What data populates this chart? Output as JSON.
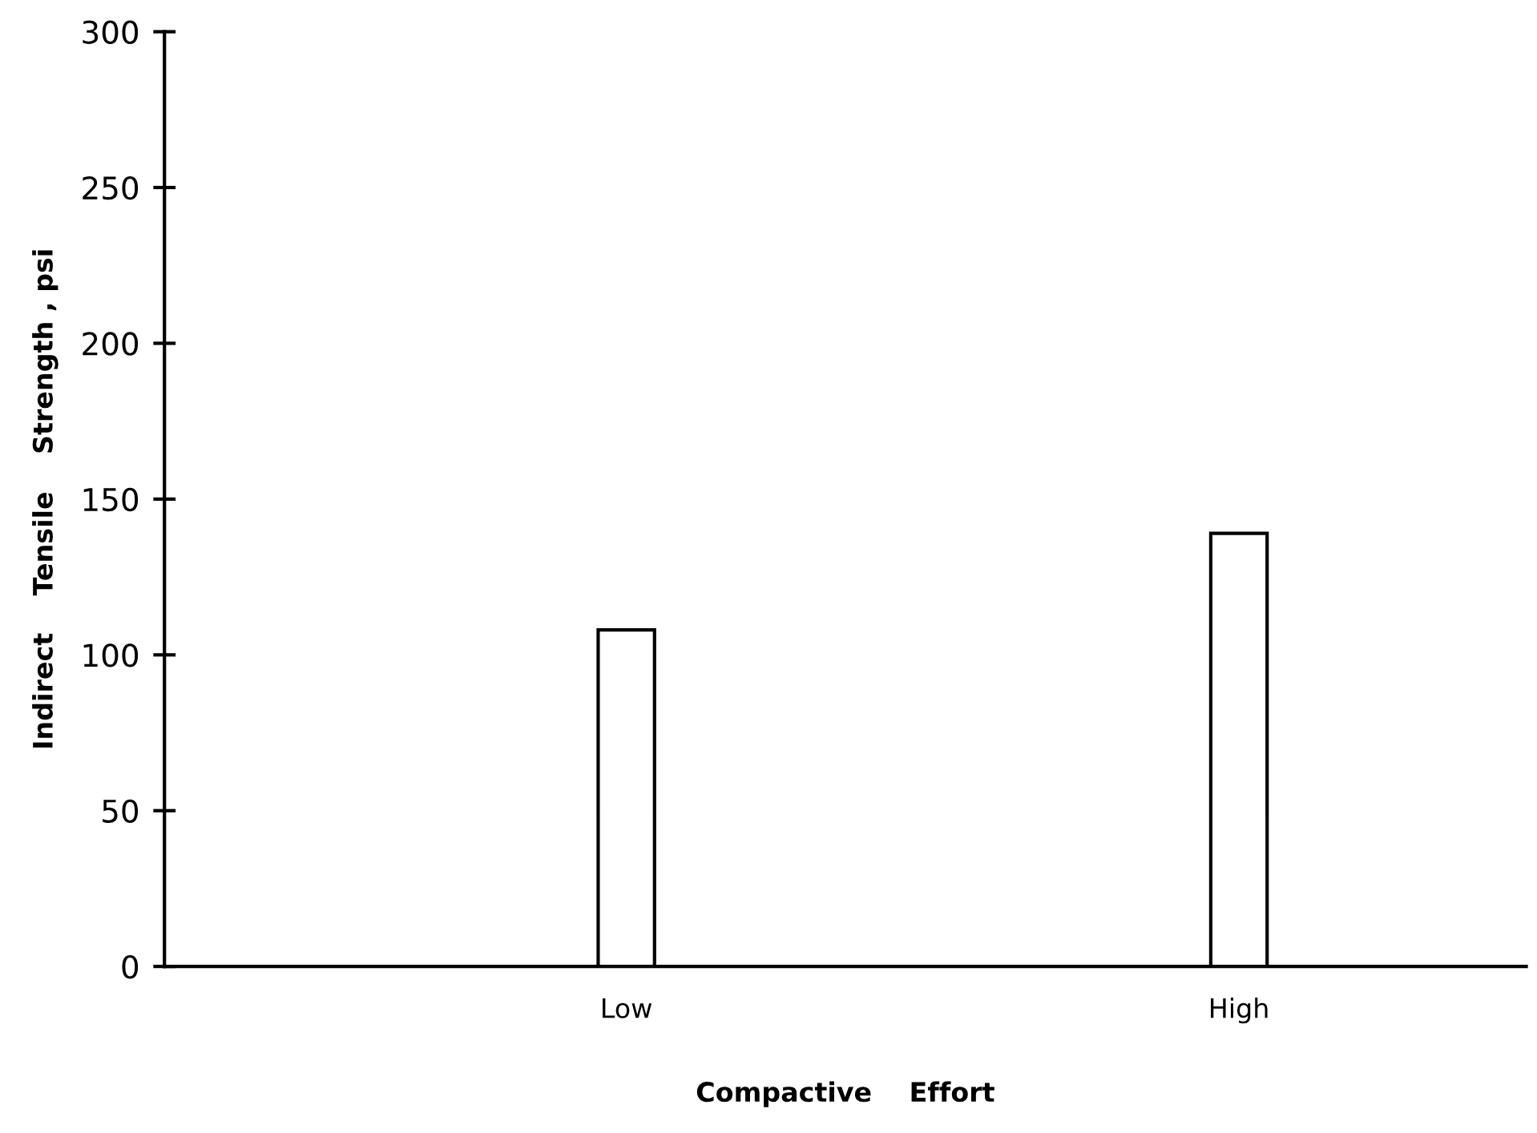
{
  "chart_data": {
    "type": "bar",
    "xlabel": "Compactive    Effort",
    "ylabel": "Indirect    Tensile    Strength , psi",
    "categories": [
      "Low",
      "High"
    ],
    "values": [
      108,
      139
    ],
    "color": "#ffffff",
    "ylim": [
      0,
      300
    ],
    "yticks": [
      0,
      50,
      100,
      150,
      200,
      250,
      300
    ],
    "grid": false,
    "legend": false
  }
}
